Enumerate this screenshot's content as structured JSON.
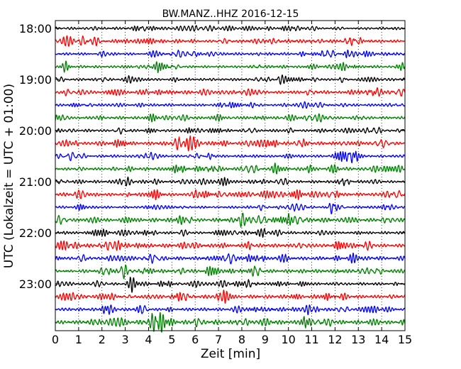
{
  "chart_data": {
    "type": "line",
    "title": "BW.MANZ..HHZ 2016-12-15",
    "xlabel": "Zeit  [min]",
    "ylabel": "UTC (Lokalzeit = UTC + 01:00)",
    "xlim": [
      0,
      15
    ],
    "xticks": [
      "0",
      "1",
      "2",
      "3",
      "4",
      "5",
      "6",
      "7",
      "8",
      "9",
      "10",
      "11",
      "12",
      "13",
      "14",
      "15"
    ],
    "yticks": [
      "18:00",
      "19:00",
      "20:00",
      "21:00",
      "22:00",
      "23:00"
    ],
    "trace_start": "18:00",
    "trace_interval_min": 15,
    "trace_count": 24,
    "trace_colors": [
      "#000000",
      "#ff0000",
      "#0000ff",
      "#008000"
    ],
    "grid": "vertical dotted",
    "series": [
      {
        "values": [
          0.35,
          0.25,
          0.35,
          0.3,
          0.35,
          0.25,
          0.3,
          0.25,
          0.3,
          0.25,
          0.3,
          0.25,
          0.3,
          0.3,
          0.35,
          0.3
        ]
      },
      {
        "values": [
          0.45,
          0.55,
          0.35,
          0.4,
          0.35,
          0.5,
          0.3,
          0.35,
          0.45,
          0.4,
          0.45,
          0.4,
          0.45,
          0.4,
          0.35,
          0.35
        ]
      },
      {
        "values": [
          0.3,
          0.3,
          0.35,
          0.3,
          0.35,
          0.3,
          0.3,
          0.35,
          0.3,
          0.35,
          0.3,
          0.35,
          0.35,
          0.3,
          0.55,
          0.3
        ]
      },
      {
        "values": [
          0.3,
          0.35,
          0.3,
          0.3,
          0.35,
          0.3,
          0.3,
          0.3,
          0.35,
          0.4,
          0.3,
          0.35,
          0.3,
          0.35,
          0.3,
          0.3
        ]
      },
      {
        "values": [
          0.3,
          0.35,
          0.3,
          0.3,
          0.3,
          0.35,
          0.3,
          0.35,
          0.3,
          0.3,
          0.35,
          0.3,
          0.3,
          0.3,
          0.4,
          0.3
        ]
      },
      {
        "values": [
          0.4,
          0.35,
          0.45,
          0.4,
          0.4,
          0.5,
          0.35,
          0.4,
          0.45,
          0.35,
          0.4,
          0.45,
          0.35,
          0.55,
          0.4,
          0.35
        ]
      },
      {
        "values": [
          0.3,
          0.35,
          0.3,
          0.3,
          0.35,
          0.3,
          0.3,
          0.3,
          0.35,
          0.3,
          0.35,
          0.3,
          0.3,
          0.3,
          0.3,
          0.3
        ]
      },
      {
        "values": [
          0.35,
          0.35,
          0.4,
          0.35,
          0.35,
          0.35,
          0.35,
          0.35,
          0.35,
          0.35,
          0.4,
          0.35,
          0.35,
          0.35,
          0.35,
          0.35
        ]
      },
      {
        "values": [
          0.3,
          0.35,
          0.3,
          0.35,
          0.3,
          0.35,
          0.3,
          0.35,
          0.3,
          0.35,
          0.3,
          0.55,
          0.3,
          0.45,
          0.3,
          0.3
        ]
      },
      {
        "values": [
          0.35,
          0.4,
          0.45,
          0.4,
          0.45,
          0.65,
          0.45,
          0.4,
          0.4,
          0.45,
          0.4,
          0.45,
          0.4,
          0.4,
          0.35,
          0.35
        ]
      },
      {
        "values": [
          0.3,
          0.3,
          0.35,
          0.3,
          0.35,
          0.3,
          0.3,
          0.3,
          0.35,
          0.3,
          0.35,
          0.3,
          0.55,
          0.3,
          0.35,
          0.4
        ]
      },
      {
        "values": [
          0.35,
          0.35,
          0.4,
          0.45,
          0.45,
          0.4,
          0.45,
          0.45,
          0.45,
          0.4,
          0.45,
          0.4,
          0.45,
          0.4,
          0.4,
          0.45
        ]
      },
      {
        "values": [
          0.3,
          0.35,
          0.3,
          0.45,
          0.35,
          0.3,
          0.3,
          0.3,
          0.5,
          0.35,
          0.3,
          0.35,
          0.3,
          0.35,
          0.3,
          0.3
        ]
      },
      {
        "values": [
          0.45,
          0.45,
          0.4,
          0.45,
          0.45,
          0.4,
          0.55,
          0.45,
          0.45,
          0.4,
          0.45,
          0.4,
          0.45,
          0.4,
          0.45,
          0.4
        ]
      },
      {
        "values": [
          0.3,
          0.35,
          0.3,
          0.35,
          0.3,
          0.35,
          0.3,
          0.3,
          0.35,
          0.3,
          0.35,
          0.3,
          0.3,
          0.35,
          0.3,
          0.3
        ]
      },
      {
        "values": [
          0.4,
          0.45,
          0.4,
          0.45,
          0.5,
          0.45,
          0.45,
          0.55,
          0.45,
          0.45,
          0.5,
          0.6,
          0.55,
          0.45,
          0.45,
          0.4
        ]
      },
      {
        "values": [
          0.3,
          0.3,
          0.35,
          0.3,
          0.35,
          0.3,
          0.3,
          0.35,
          0.6,
          0.35,
          0.35,
          0.3,
          0.35,
          0.3,
          0.35,
          0.3
        ]
      },
      {
        "values": [
          0.45,
          0.5,
          0.45,
          0.45,
          0.5,
          0.45,
          0.45,
          0.4,
          0.45,
          0.45,
          0.4,
          0.45,
          0.45,
          0.45,
          0.4,
          0.4
        ]
      },
      {
        "values": [
          0.35,
          0.4,
          0.45,
          0.45,
          0.45,
          0.45,
          0.5,
          0.45,
          0.45,
          0.45,
          0.4,
          0.45,
          0.45,
          0.5,
          0.4,
          0.4
        ]
      },
      {
        "values": [
          0.4,
          0.45,
          0.5,
          0.45,
          0.5,
          0.45,
          0.5,
          0.45,
          0.45,
          0.45,
          0.5,
          0.45,
          0.55,
          0.45,
          0.45,
          0.45
        ]
      },
      {
        "values": [
          0.3,
          0.35,
          0.3,
          0.55,
          0.35,
          0.3,
          0.35,
          0.3,
          0.5,
          0.35,
          0.3,
          0.35,
          0.3,
          0.35,
          0.3,
          0.3
        ]
      },
      {
        "values": [
          0.4,
          0.55,
          0.4,
          0.45,
          0.45,
          0.45,
          0.45,
          0.4,
          0.45,
          0.45,
          0.45,
          0.5,
          0.45,
          0.4,
          0.45,
          0.4
        ]
      },
      {
        "values": [
          0.35,
          0.4,
          0.4,
          0.45,
          0.35,
          0.4,
          0.4,
          0.35,
          0.4,
          0.55,
          0.4,
          0.4,
          0.35,
          0.4,
          0.35,
          0.35
        ]
      },
      {
        "values": [
          0.45,
          0.5,
          0.55,
          0.55,
          0.5,
          0.55,
          0.6,
          0.5,
          0.55,
          0.55,
          0.5,
          0.55,
          0.5,
          0.5,
          0.5,
          0.45
        ]
      }
    ]
  }
}
